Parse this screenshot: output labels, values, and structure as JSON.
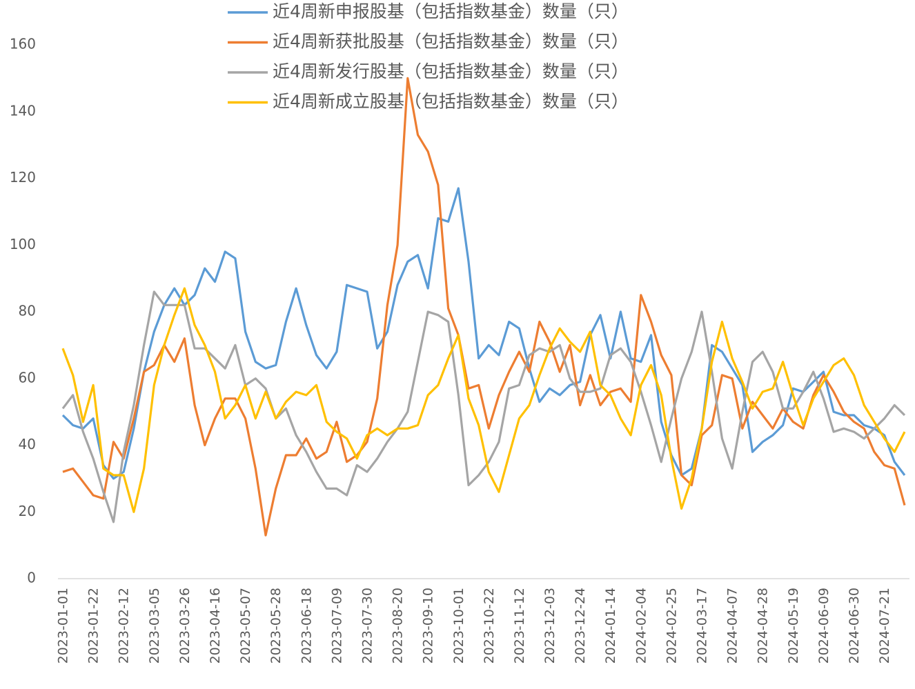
{
  "chart_data": {
    "type": "line",
    "categories": [
      "2023-01-01",
      null,
      null,
      "2023-01-22",
      null,
      null,
      "2023-02-12",
      null,
      null,
      "2023-03-05",
      null,
      null,
      "2023-03-26",
      null,
      null,
      "2023-04-16",
      null,
      null,
      "2023-05-07",
      null,
      null,
      "2023-05-28",
      null,
      null,
      "2023-06-18",
      null,
      null,
      "2023-07-09",
      null,
      null,
      "2023-07-30",
      null,
      null,
      "2023-08-20",
      null,
      null,
      "2023-09-10",
      null,
      null,
      "2023-10-01",
      null,
      null,
      "2023-10-22",
      null,
      null,
      "2023-11-12",
      null,
      null,
      "2023-12-03",
      null,
      null,
      "2023-12-24",
      null,
      null,
      "2024-01-14",
      null,
      null,
      "2024-02-04",
      null,
      null,
      "2024-02-25",
      null,
      null,
      "2024-03-17",
      null,
      null,
      "2024-04-07",
      null,
      null,
      "2024-04-28",
      null,
      null,
      "2024-05-19",
      null,
      null,
      "2024-06-09",
      null,
      null,
      "2024-06-30",
      null,
      null,
      "2024-07-21",
      null,
      null
    ],
    "series": [
      {
        "name": "近4周新申报股基（包括指数基金）数量（只）",
        "color": "#5b9bd5",
        "values": [
          49,
          46,
          45,
          48,
          34,
          30,
          32,
          45,
          62,
          74,
          82,
          87,
          82,
          85,
          93,
          89,
          98,
          96,
          74,
          65,
          63,
          64,
          77,
          87,
          76,
          67,
          63,
          68,
          88,
          87,
          86,
          69,
          74,
          88,
          95,
          97,
          87,
          108,
          107,
          117,
          95,
          66,
          70,
          67,
          77,
          75,
          63,
          53,
          57,
          55,
          58,
          59,
          73,
          79,
          66,
          80,
          66,
          65,
          73,
          47,
          37,
          31,
          33,
          45,
          70,
          68,
          63,
          58,
          38,
          41,
          43,
          46,
          57,
          56,
          59,
          62,
          50,
          49,
          49,
          46,
          45,
          43,
          35,
          31
        ]
      },
      {
        "name": "近4周新获批股基（包括指数基金）数量（只）",
        "color": "#ed7d31",
        "values": [
          32,
          33,
          29,
          25,
          24,
          41,
          36,
          48,
          62,
          64,
          70,
          65,
          72,
          52,
          40,
          48,
          54,
          54,
          48,
          33,
          13,
          27,
          37,
          37,
          42,
          36,
          38,
          47,
          35,
          37,
          41,
          54,
          82,
          100,
          150,
          133,
          128,
          118,
          81,
          73,
          57,
          58,
          45,
          55,
          62,
          68,
          62,
          77,
          71,
          62,
          70,
          52,
          61,
          52,
          56,
          57,
          53,
          85,
          77,
          67,
          61,
          31,
          28,
          43,
          46,
          61,
          60,
          45,
          53,
          49,
          45,
          51,
          47,
          45,
          55,
          61,
          56,
          50,
          47,
          45,
          38,
          34,
          33,
          22
        ]
      },
      {
        "name": "近4周新发行股基（包括指数基金）数量（只）",
        "color": "#a5a5a5",
        "values": [
          51,
          55,
          44,
          36,
          26,
          17,
          38,
          52,
          70,
          86,
          82,
          82,
          82,
          69,
          69,
          66,
          63,
          70,
          58,
          60,
          57,
          48,
          51,
          43,
          38,
          32,
          27,
          27,
          25,
          34,
          32,
          36,
          41,
          45,
          50,
          65,
          80,
          79,
          77,
          55,
          28,
          31,
          35,
          41,
          57,
          58,
          67,
          69,
          68,
          70,
          60,
          56,
          56,
          57,
          67,
          69,
          65,
          56,
          46,
          35,
          48,
          60,
          68,
          80,
          62,
          42,
          33,
          50,
          65,
          68,
          62,
          51,
          51,
          56,
          62,
          54,
          44,
          45,
          44,
          42,
          45,
          48,
          52,
          49
        ]
      },
      {
        "name": "近4周新成立股基（包括指数基金）数量（只）",
        "color": "#ffc000",
        "values": [
          69,
          61,
          47,
          58,
          33,
          31,
          31,
          20,
          33,
          58,
          70,
          79,
          87,
          76,
          70,
          62,
          48,
          52,
          58,
          48,
          56,
          48,
          53,
          56,
          55,
          58,
          47,
          44,
          42,
          36,
          43,
          45,
          43,
          45,
          45,
          46,
          55,
          58,
          66,
          73,
          54,
          46,
          32,
          26,
          37,
          48,
          52,
          61,
          69,
          75,
          71,
          68,
          74,
          58,
          55,
          48,
          43,
          58,
          64,
          55,
          36,
          21,
          30,
          45,
          65,
          77,
          66,
          59,
          51,
          56,
          57,
          65,
          55,
          46,
          54,
          59,
          64,
          66,
          61,
          52,
          47,
          42,
          38,
          44
        ]
      }
    ],
    "ylim": [
      0,
      160
    ],
    "yticks": [
      0,
      20,
      40,
      60,
      80,
      100,
      120,
      140,
      160
    ]
  }
}
